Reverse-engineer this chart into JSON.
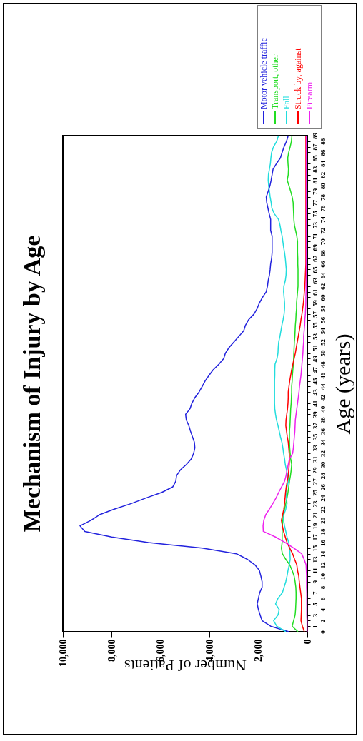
{
  "chart_data": {
    "type": "line",
    "title": "Mechanism of Injury by Age",
    "xlabel": "Number of Patients",
    "ylabel": "Age (years)",
    "orientation": "horizontal",
    "categories": [
      "89",
      "88",
      "87",
      "86",
      "85",
      "84",
      "83",
      "82",
      "81",
      "80",
      "79",
      "78",
      "77",
      "76",
      "75",
      "74",
      "73",
      "72",
      "71",
      "70",
      "69",
      "68",
      "67",
      "66",
      "65",
      "64",
      "63",
      "62",
      "61",
      "60",
      "59",
      "58",
      "57",
      "56",
      "55",
      "54",
      "53",
      "52",
      "51",
      "50",
      "49",
      "48",
      "47",
      "46",
      "45",
      "44",
      "43",
      "42",
      "41",
      "40",
      "39",
      "38",
      "37",
      "36",
      "35",
      "34",
      "33",
      "32",
      "31",
      "30",
      "29",
      "28",
      "27",
      "26",
      "25",
      "24",
      "23",
      "22",
      "21",
      "20",
      "19",
      "18",
      "17",
      "16",
      "15",
      "14",
      "13",
      "12",
      "11",
      "10",
      "9",
      "8",
      "7",
      "6",
      "5",
      "4",
      "3",
      "2",
      "1",
      "0"
    ],
    "series": [
      {
        "name": "Motor vehicle traffic",
        "color": "#2222dd",
        "values": [
          780,
          850,
          950,
          1030,
          1100,
          1260,
          1400,
          1440,
          1480,
          1530,
          1600,
          1680,
          1660,
          1610,
          1560,
          1500,
          1500,
          1500,
          1440,
          1440,
          1440,
          1440,
          1460,
          1500,
          1520,
          1550,
          1600,
          1630,
          1680,
          1830,
          1960,
          2050,
          2180,
          2400,
          2530,
          2600,
          2800,
          3000,
          3200,
          3350,
          3420,
          3620,
          3850,
          4020,
          4180,
          4300,
          4430,
          4600,
          4720,
          4800,
          4980,
          4950,
          4850,
          4780,
          4700,
          4620,
          4600,
          4650,
          4750,
          4950,
          5200,
          5350,
          5380,
          5500,
          5950,
          6600,
          7200,
          7900,
          8500,
          8850,
          9300,
          9100,
          8000,
          6500,
          4300,
          2900,
          2450,
          2140,
          1960,
          1900,
          1850,
          1850,
          1950,
          2000,
          2050,
          2000,
          1930,
          1850,
          1500,
          750
        ]
      },
      {
        "name": "Transport, other",
        "color": "#22dd22",
        "values": [
          630,
          650,
          700,
          760,
          800,
          790,
          770,
          780,
          820,
          750,
          680,
          620,
          580,
          570,
          560,
          550,
          530,
          480,
          430,
          400,
          400,
          400,
          390,
          390,
          380,
          380,
          380,
          380,
          400,
          420,
          440,
          440,
          460,
          470,
          490,
          500,
          510,
          530,
          540,
          550,
          560,
          570,
          590,
          610,
          620,
          640,
          640,
          650,
          660,
          680,
          690,
          700,
          710,
          730,
          730,
          730,
          720,
          700,
          680,
          640,
          660,
          690,
          730,
          760,
          790,
          830,
          880,
          930,
          980,
          1000,
          1020,
          1030,
          1030,
          1030,
          1060,
          1020,
          880,
          720,
          620,
          540,
          500,
          470,
          460,
          460,
          470,
          480,
          500,
          560,
          620,
          380
        ]
      },
      {
        "name": "Fall",
        "color": "#22dddd",
        "values": [
          1180,
          1250,
          1380,
          1460,
          1490,
          1510,
          1550,
          1590,
          1600,
          1580,
          1550,
          1520,
          1480,
          1450,
          1350,
          1180,
          1120,
          1080,
          1030,
          1000,
          970,
          930,
          900,
          880,
          860,
          870,
          900,
          960,
          970,
          950,
          930,
          930,
          950,
          990,
          1040,
          1080,
          1120,
          1170,
          1190,
          1200,
          1240,
          1320,
          1330,
          1330,
          1340,
          1340,
          1340,
          1340,
          1340,
          1330,
          1300,
          1260,
          1200,
          1150,
          1100,
          1040,
          1000,
          970,
          930,
          900,
          850,
          800,
          770,
          830,
          880,
          850,
          830,
          880,
          960,
          970,
          930,
          880,
          830,
          760,
          720,
          710,
          700,
          740,
          790,
          830,
          880,
          950,
          1020,
          1200,
          1300,
          1150,
          1200,
          1380,
          1250,
          880
        ]
      },
      {
        "name": "Struck by, against",
        "color": "#ff0000",
        "values": [
          60,
          60,
          60,
          60,
          60,
          60,
          60,
          60,
          60,
          60,
          60,
          60,
          60,
          60,
          60,
          60,
          60,
          60,
          60,
          60,
          60,
          60,
          60,
          60,
          70,
          80,
          90,
          100,
          120,
          140,
          160,
          190,
          220,
          260,
          290,
          330,
          370,
          410,
          450,
          490,
          540,
          590,
          640,
          680,
          720,
          750,
          780,
          780,
          790,
          810,
          840,
          870,
          880,
          850,
          820,
          780,
          760,
          740,
          730,
          740,
          760,
          780,
          820,
          860,
          890,
          910,
          930,
          960,
          1010,
          1060,
          1020,
          970,
          900,
          830,
          720,
          600,
          520,
          430,
          400,
          350,
          330,
          300,
          270,
          240,
          240,
          240,
          250,
          260,
          200,
          120
        ]
      },
      {
        "name": "Firearm",
        "color": "#ee22ee",
        "values": [
          40,
          40,
          40,
          40,
          40,
          40,
          40,
          40,
          40,
          40,
          40,
          40,
          40,
          40,
          40,
          40,
          40,
          40,
          40,
          40,
          40,
          40,
          40,
          40,
          40,
          40,
          40,
          50,
          50,
          60,
          60,
          70,
          80,
          100,
          110,
          130,
          150,
          150,
          170,
          180,
          200,
          220,
          240,
          260,
          290,
          320,
          340,
          370,
          400,
          430,
          460,
          490,
          500,
          510,
          530,
          550,
          570,
          600,
          730,
          780,
          830,
          870,
          930,
          1050,
          1170,
          1280,
          1410,
          1550,
          1700,
          1780,
          1810,
          1800,
          1300,
          900,
          550,
          230,
          130,
          50,
          40,
          30,
          30,
          30,
          20,
          20,
          20,
          20,
          20,
          10,
          10,
          10
        ]
      }
    ],
    "xlim": [
      10000,
      0
    ],
    "xticks": [
      {
        "value": 10000,
        "label": "10,000"
      },
      {
        "value": 8000,
        "label": "8,000"
      },
      {
        "value": 6000,
        "label": "6,000"
      },
      {
        "value": 4000,
        "label": "4,000"
      },
      {
        "value": 2000,
        "label": "2,000"
      },
      0
    ],
    "legend": "top right"
  }
}
